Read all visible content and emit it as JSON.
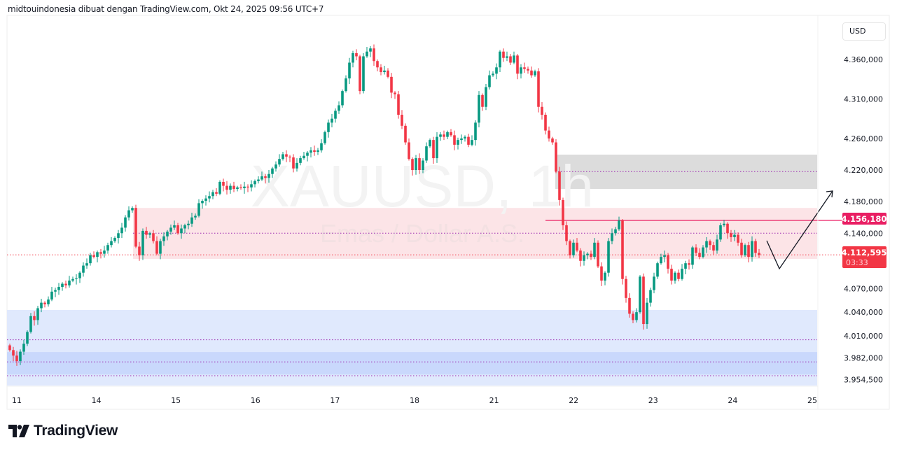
{
  "header": {
    "attribution": "midtouindonesia dibuat dengan TradingView.com, Okt 24, 2025 09:56 UTC+7"
  },
  "watermark": {
    "symbol": "XAUUSD, 1h",
    "description": "Emas / Dollar A.S."
  },
  "price_axis": {
    "currency": "USD",
    "labels": [
      "4.360,000",
      "4.310,000",
      "4.260,000",
      "4.220,000",
      "4.180,000",
      "4.140,000",
      "4.070,000",
      "4.040,000",
      "4.010,000",
      "3.982,000",
      "3.954,500"
    ]
  },
  "time_axis": {
    "labels": [
      "11",
      "14",
      "15",
      "16",
      "17",
      "18",
      "21",
      "22",
      "23",
      "24",
      "25"
    ]
  },
  "price_badges": {
    "level": {
      "value": "4.156,180",
      "color": "#e91e63"
    },
    "current": {
      "value": "4.112,595",
      "countdown": "03:33",
      "color": "#f23645"
    }
  },
  "logo": {
    "text": "TradingView"
  },
  "colors": {
    "up": "#089981",
    "down": "#f23645",
    "resistance_zone": "#fce4e7",
    "supply_zone": "#dcdcdc",
    "demand_zone": "#e0e9fd",
    "demand_zone_inner": "#c9d8fc",
    "dotted_level": "#9c27b0"
  },
  "chart_data": {
    "type": "candlestick",
    "symbol": "XAUUSD",
    "interval": "1h",
    "ylim": [
      3945,
      4390
    ],
    "x_ticks": [
      "11",
      "14",
      "15",
      "16",
      "17",
      "18",
      "21",
      "22",
      "23",
      "24",
      "25"
    ],
    "first_open": 3998,
    "closes": [
      3992,
      3985,
      3978,
      3990,
      4000,
      4015,
      4035,
      4030,
      4045,
      4052,
      4050,
      4056,
      4066,
      4068,
      4072,
      4076,
      4074,
      4080,
      4082,
      4083,
      4090,
      4099,
      4102,
      4112,
      4110,
      4116,
      4114,
      4118,
      4125,
      4130,
      4134,
      4140,
      4147,
      4160,
      4169,
      4172,
      4123,
      4112,
      4143,
      4138,
      4140,
      4130,
      4114,
      4130,
      4136,
      4142,
      4147,
      4150,
      4140,
      4146,
      4150,
      4152,
      4160,
      4162,
      4178,
      4181,
      4184,
      4187,
      4192,
      4190,
      4205,
      4200,
      4195,
      4200,
      4196,
      4198,
      4197,
      4199,
      4198,
      4202,
      4206,
      4208,
      4212,
      4210,
      4215,
      4222,
      4227,
      4234,
      4240,
      4237,
      4236,
      4222,
      4229,
      4235,
      4238,
      4242,
      4245,
      4243,
      4245,
      4254,
      4268,
      4280,
      4285,
      4295,
      4302,
      4320,
      4336,
      4356,
      4368,
      4364,
      4320,
      4364,
      4370,
      4374,
      4358,
      4350,
      4344,
      4346,
      4338,
      4318,
      4316,
      4290,
      4276,
      4255,
      4234,
      4220,
      4235,
      4220,
      4232,
      4250,
      4258,
      4235,
      4262,
      4265,
      4262,
      4268,
      4264,
      4252,
      4258,
      4260,
      4262,
      4252,
      4258,
      4280,
      4315,
      4300,
      4325,
      4340,
      4342,
      4350,
      4370,
      4362,
      4364,
      4356,
      4365,
      4342,
      4350,
      4348,
      4346,
      4340,
      4345,
      4300,
      4290,
      4270,
      4260,
      4255,
      4218,
      4182,
      4150,
      4130,
      4112,
      4128,
      4118,
      4105,
      4112,
      4114,
      4110,
      4128,
      4098,
      4080,
      4090,
      4130,
      4140,
      4145,
      4156,
      4082,
      4058,
      4038,
      4030,
      4040,
      4085,
      4025,
      4052,
      4068,
      4085,
      4102,
      4110,
      4112,
      4095,
      4080,
      4090,
      4082,
      4095,
      4102,
      4100,
      4122,
      4115,
      4110,
      4122,
      4130,
      4125,
      4118,
      4132,
      4150,
      4152,
      4140,
      4135,
      4138,
      4128,
      4112,
      4125,
      4110,
      4130,
      4115,
      4112.595
    ],
    "zones": [
      {
        "name": "resistance",
        "from": 4107.5,
        "to": 4172,
        "mid_level": 4140
      },
      {
        "name": "supply",
        "from": 4196,
        "to": 4239.5,
        "mid_level": 4218
      },
      {
        "name": "demand",
        "from": 3947,
        "to": 4042.8,
        "levels": [
          4005,
          3959.5
        ]
      },
      {
        "name": "demand-inner",
        "from": 3961,
        "to": 3989.5,
        "mid_level": 3977
      }
    ],
    "horizontal_line": 4156.18,
    "current_price": 4112.595
  }
}
